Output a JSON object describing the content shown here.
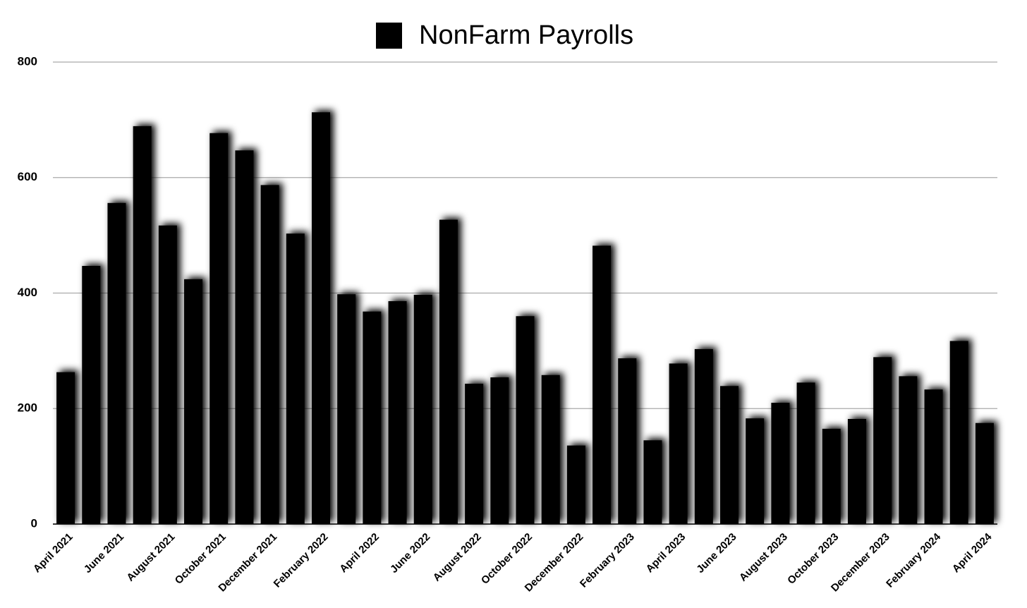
{
  "chart_data": {
    "type": "bar",
    "categories": [
      "April 2021",
      null,
      "June 2021",
      null,
      "August 2021",
      null,
      "October 2021",
      null,
      "December 2021",
      null,
      "February 2022",
      null,
      "April 2022",
      null,
      "June 2022",
      null,
      "August 2022",
      null,
      "October 2022",
      null,
      "December 2022",
      null,
      "February 2023",
      null,
      "April 2023",
      null,
      "June 2023",
      null,
      "August 2023",
      null,
      "October 2023",
      null,
      "December 2023",
      null,
      "February 2024",
      null,
      "April 2024"
    ],
    "series": [
      {
        "name": "NonFarm Payrolls",
        "color": "#000000",
        "values": [
          263,
          447,
          556,
          689,
          517,
          424,
          677,
          647,
          587,
          503,
          713,
          398,
          368,
          386,
          397,
          527,
          243,
          254,
          360,
          258,
          136,
          482,
          287,
          145,
          278,
          303,
          239,
          183,
          210,
          245,
          165,
          182,
          289,
          256,
          233,
          317,
          175
        ]
      }
    ],
    "ylim": [
      0,
      800
    ],
    "yticks": [
      0,
      200,
      400,
      600,
      800
    ],
    "grid": true
  }
}
